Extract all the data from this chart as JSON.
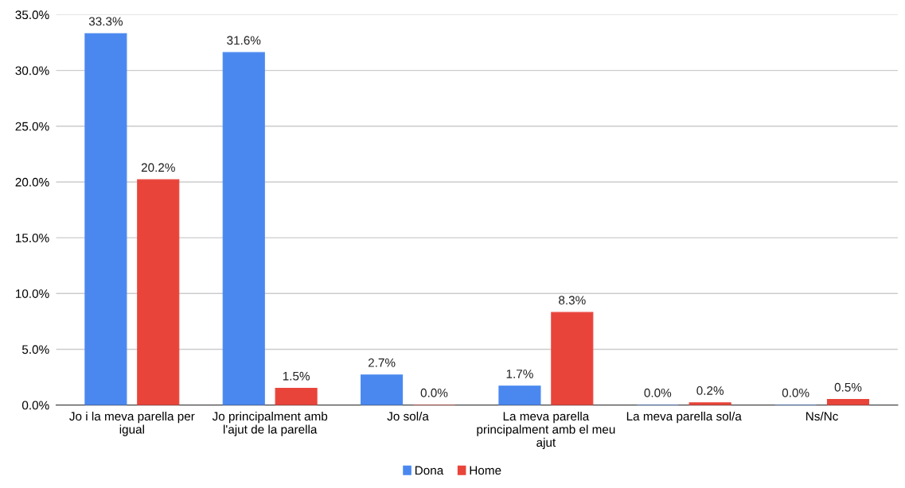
{
  "chart_data": {
    "type": "bar",
    "categories": [
      "Jo i la meva parella per igual",
      "Jo principalment amb l'ajut de la parella",
      "Jo sol/a",
      "La meva parella principalment amb el meu ajut",
      "La meva parella sol/a",
      "Ns/Nc"
    ],
    "series": [
      {
        "name": "Dona",
        "color": "#4a88f0",
        "values": [
          33.3,
          31.6,
          2.7,
          1.7,
          0.0,
          0.0
        ],
        "value_labels": [
          "33.3%",
          "31.6%",
          "2.7%",
          "1.7%",
          "0.0%",
          "0.0%"
        ]
      },
      {
        "name": "Home",
        "color": "#e9443a",
        "values": [
          20.2,
          1.5,
          0.0,
          8.3,
          0.2,
          0.5
        ],
        "value_labels": [
          "20.2%",
          "1.5%",
          "0.0%",
          "8.3%",
          "0.2%",
          "0.5%"
        ]
      }
    ],
    "ylim": [
      0,
      35
    ],
    "yticks": [
      {
        "value": 0,
        "label": "0.0%"
      },
      {
        "value": 5,
        "label": "5.0%"
      },
      {
        "value": 10,
        "label": "10.0%"
      },
      {
        "value": 15,
        "label": "15.0%"
      },
      {
        "value": 20,
        "label": "20.0%"
      },
      {
        "value": 25,
        "label": "25.0%"
      },
      {
        "value": 30,
        "label": "30.0%"
      },
      {
        "value": 35,
        "label": "35.0%"
      }
    ],
    "grid": "y",
    "legend": "bottom"
  }
}
